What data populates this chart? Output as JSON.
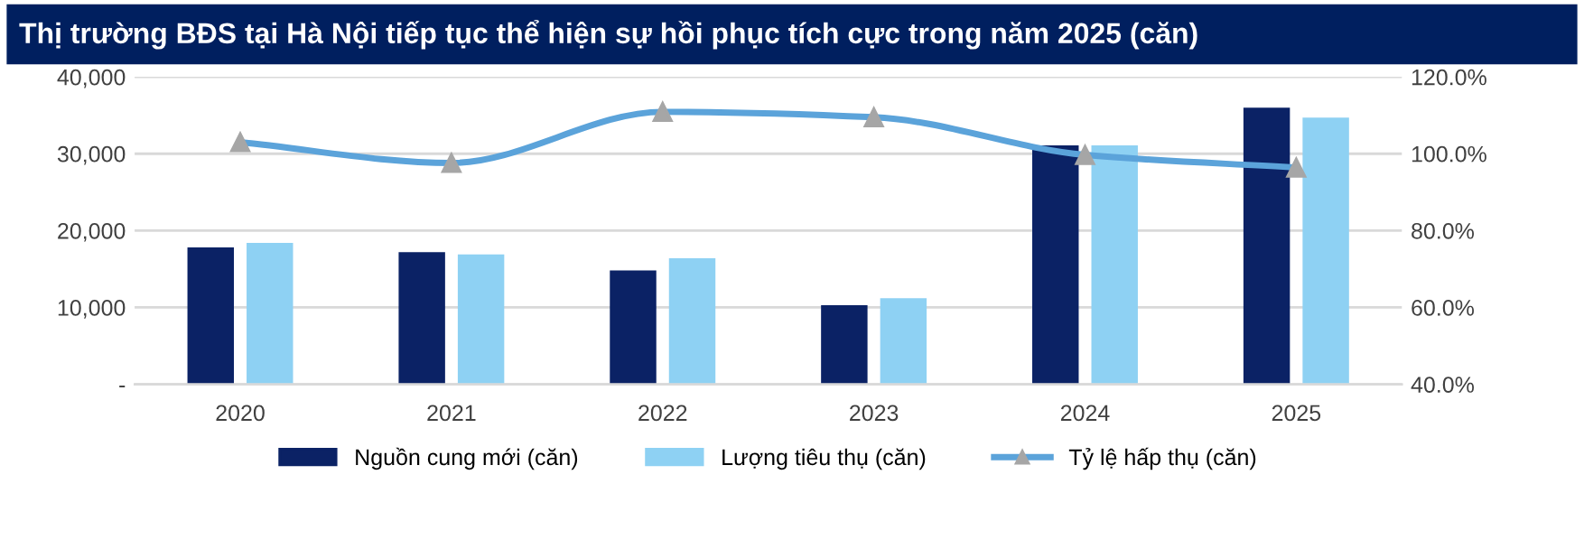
{
  "chart_data": {
    "type": "bar",
    "title": "Thị trường BĐS tại Hà Nội tiếp tục thể hiện sự hồi phục tích cực trong năm 2025 (căn)",
    "categories": [
      "2020",
      "2021",
      "2022",
      "2023",
      "2024",
      "2025"
    ],
    "series": [
      {
        "name": "Nguồn cung mới (căn)",
        "color": "#0b2265",
        "values": [
          17800,
          17200,
          14800,
          10300,
          31100,
          36000
        ]
      },
      {
        "name": "Lượng tiêu thụ (căn)",
        "color": "#8ed1f3",
        "values": [
          18400,
          16900,
          16400,
          11200,
          31100,
          34700
        ]
      },
      {
        "name": "Tỷ lệ hấp thụ (căn)",
        "type": "line",
        "axis": "y2",
        "color": "#5ba3da",
        "marker": "triangle",
        "values": [
          103.0,
          97.6,
          110.9,
          109.5,
          99.7,
          96.4
        ]
      }
    ],
    "ylim": [
      0,
      40000
    ],
    "yticks": [
      {
        "value": 0,
        "label": "-"
      },
      {
        "value": 10000,
        "label": "10,000"
      },
      {
        "value": 20000,
        "label": "20,000"
      },
      {
        "value": 30000,
        "label": "30,000"
      },
      {
        "value": 40000,
        "label": "40,000"
      }
    ],
    "y2lim": [
      40,
      120
    ],
    "y2ticks": [
      {
        "value": 40,
        "label": "40.0%"
      },
      {
        "value": 60,
        "label": "60.0%"
      },
      {
        "value": 80,
        "label": "80.0%"
      },
      {
        "value": 100,
        "label": "100.0%"
      },
      {
        "value": 120,
        "label": "120.0%"
      }
    ],
    "grid": "y",
    "legend": "bottom"
  }
}
